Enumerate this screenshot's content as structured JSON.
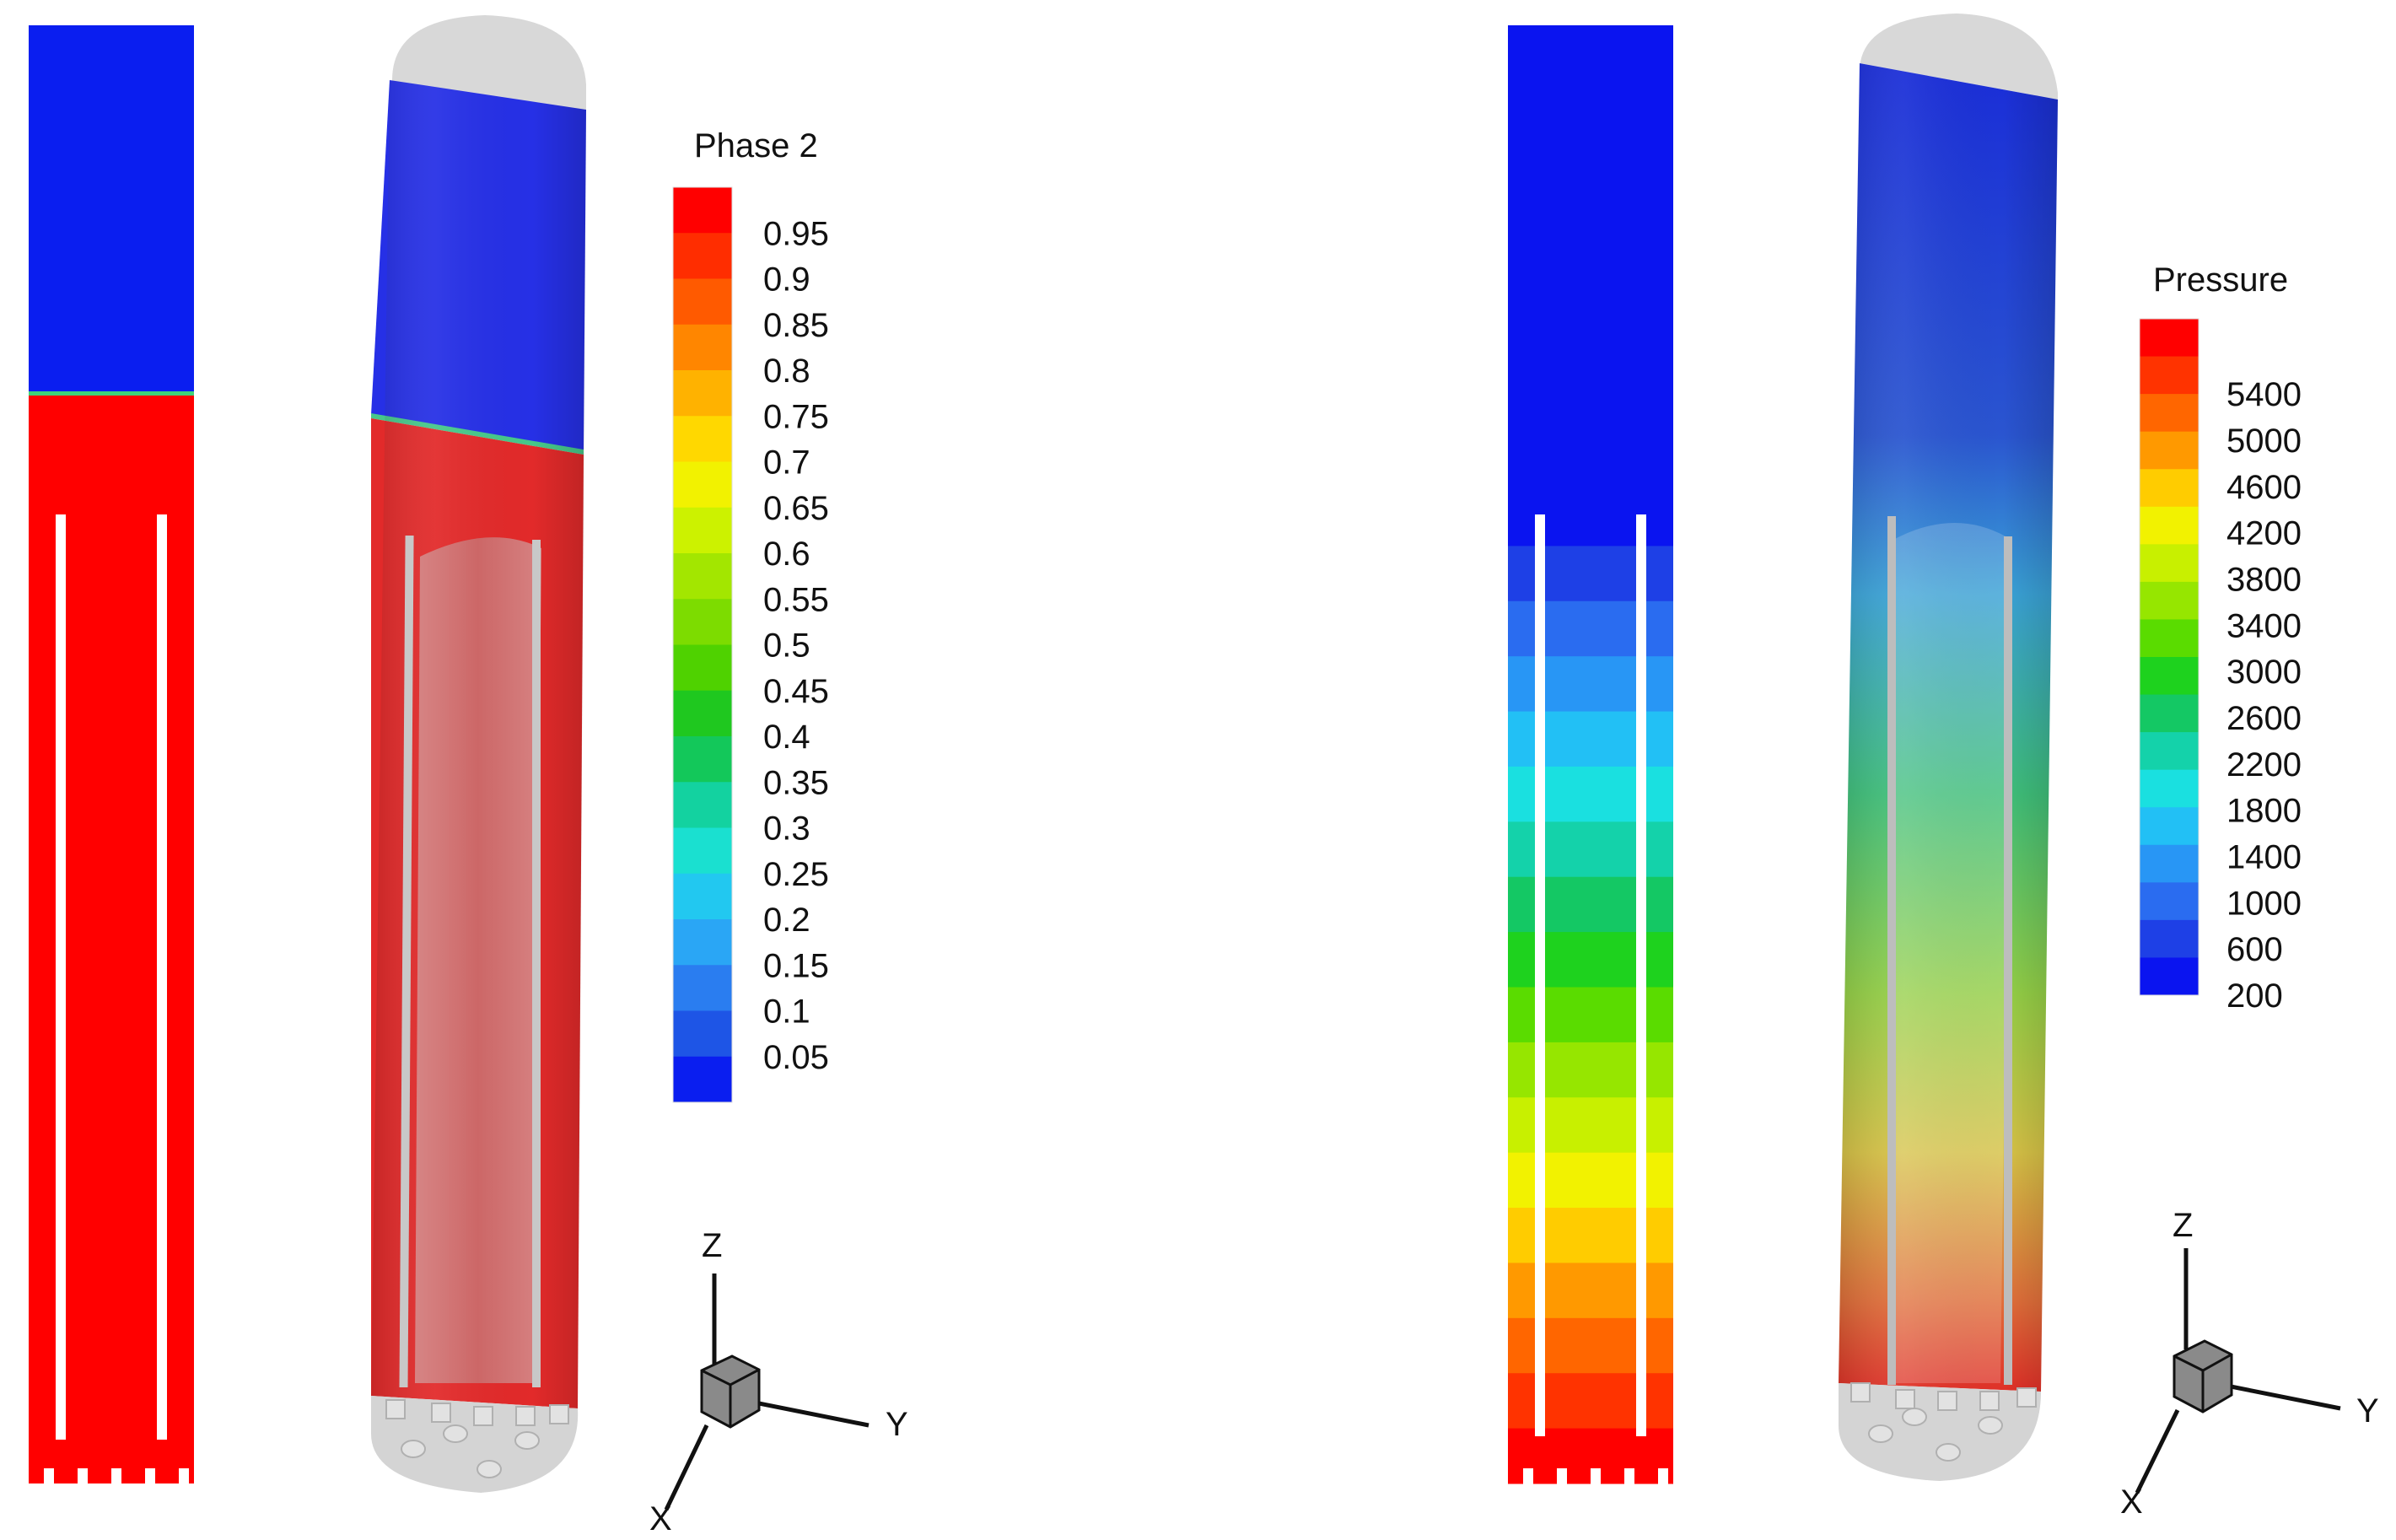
{
  "left_figure": {
    "legend": {
      "title": "Phase 2",
      "ticks": [
        "0.95",
        "0.9",
        "0.85",
        "0.8",
        "0.75",
        "0.7",
        "0.65",
        "0.6",
        "0.55",
        "0.5",
        "0.45",
        "0.4",
        "0.35",
        "0.3",
        "0.25",
        "0.2",
        "0.15",
        "0.1",
        "0.05"
      ],
      "colors": [
        "#ff0000",
        "#ff2d00",
        "#ff5a00",
        "#ff8600",
        "#ffb200",
        "#ffd800",
        "#f2f200",
        "#ccf200",
        "#a3e600",
        "#7ddc00",
        "#4fd200",
        "#1fc81f",
        "#13c85a",
        "#13d2a0",
        "#1ae0d0",
        "#22c8f0",
        "#2aa6f5",
        "#2a7df0",
        "#1e55e6",
        "#0a1ef0"
      ]
    },
    "axes": {
      "z": "Z",
      "y": "Y",
      "x": "X"
    }
  },
  "right_figure": {
    "legend": {
      "title": "Pressure",
      "ticks": [
        "5400",
        "5000",
        "4600",
        "4200",
        "3800",
        "3400",
        "3000",
        "2600",
        "2200",
        "1800",
        "1400",
        "1000",
        "600",
        "200"
      ],
      "colors": [
        "#ff0000",
        "#ff3300",
        "#ff6600",
        "#ff9900",
        "#ffcc00",
        "#f2f200",
        "#c8f000",
        "#96e600",
        "#5adc00",
        "#1ed21e",
        "#14c864",
        "#14d2aa",
        "#1ae0e0",
        "#22c0f5",
        "#2896f5",
        "#2a6cf0",
        "#1e40e6",
        "#0a14f0"
      ]
    },
    "axes": {
      "z": "Z",
      "y": "Y",
      "x": "X"
    }
  }
}
